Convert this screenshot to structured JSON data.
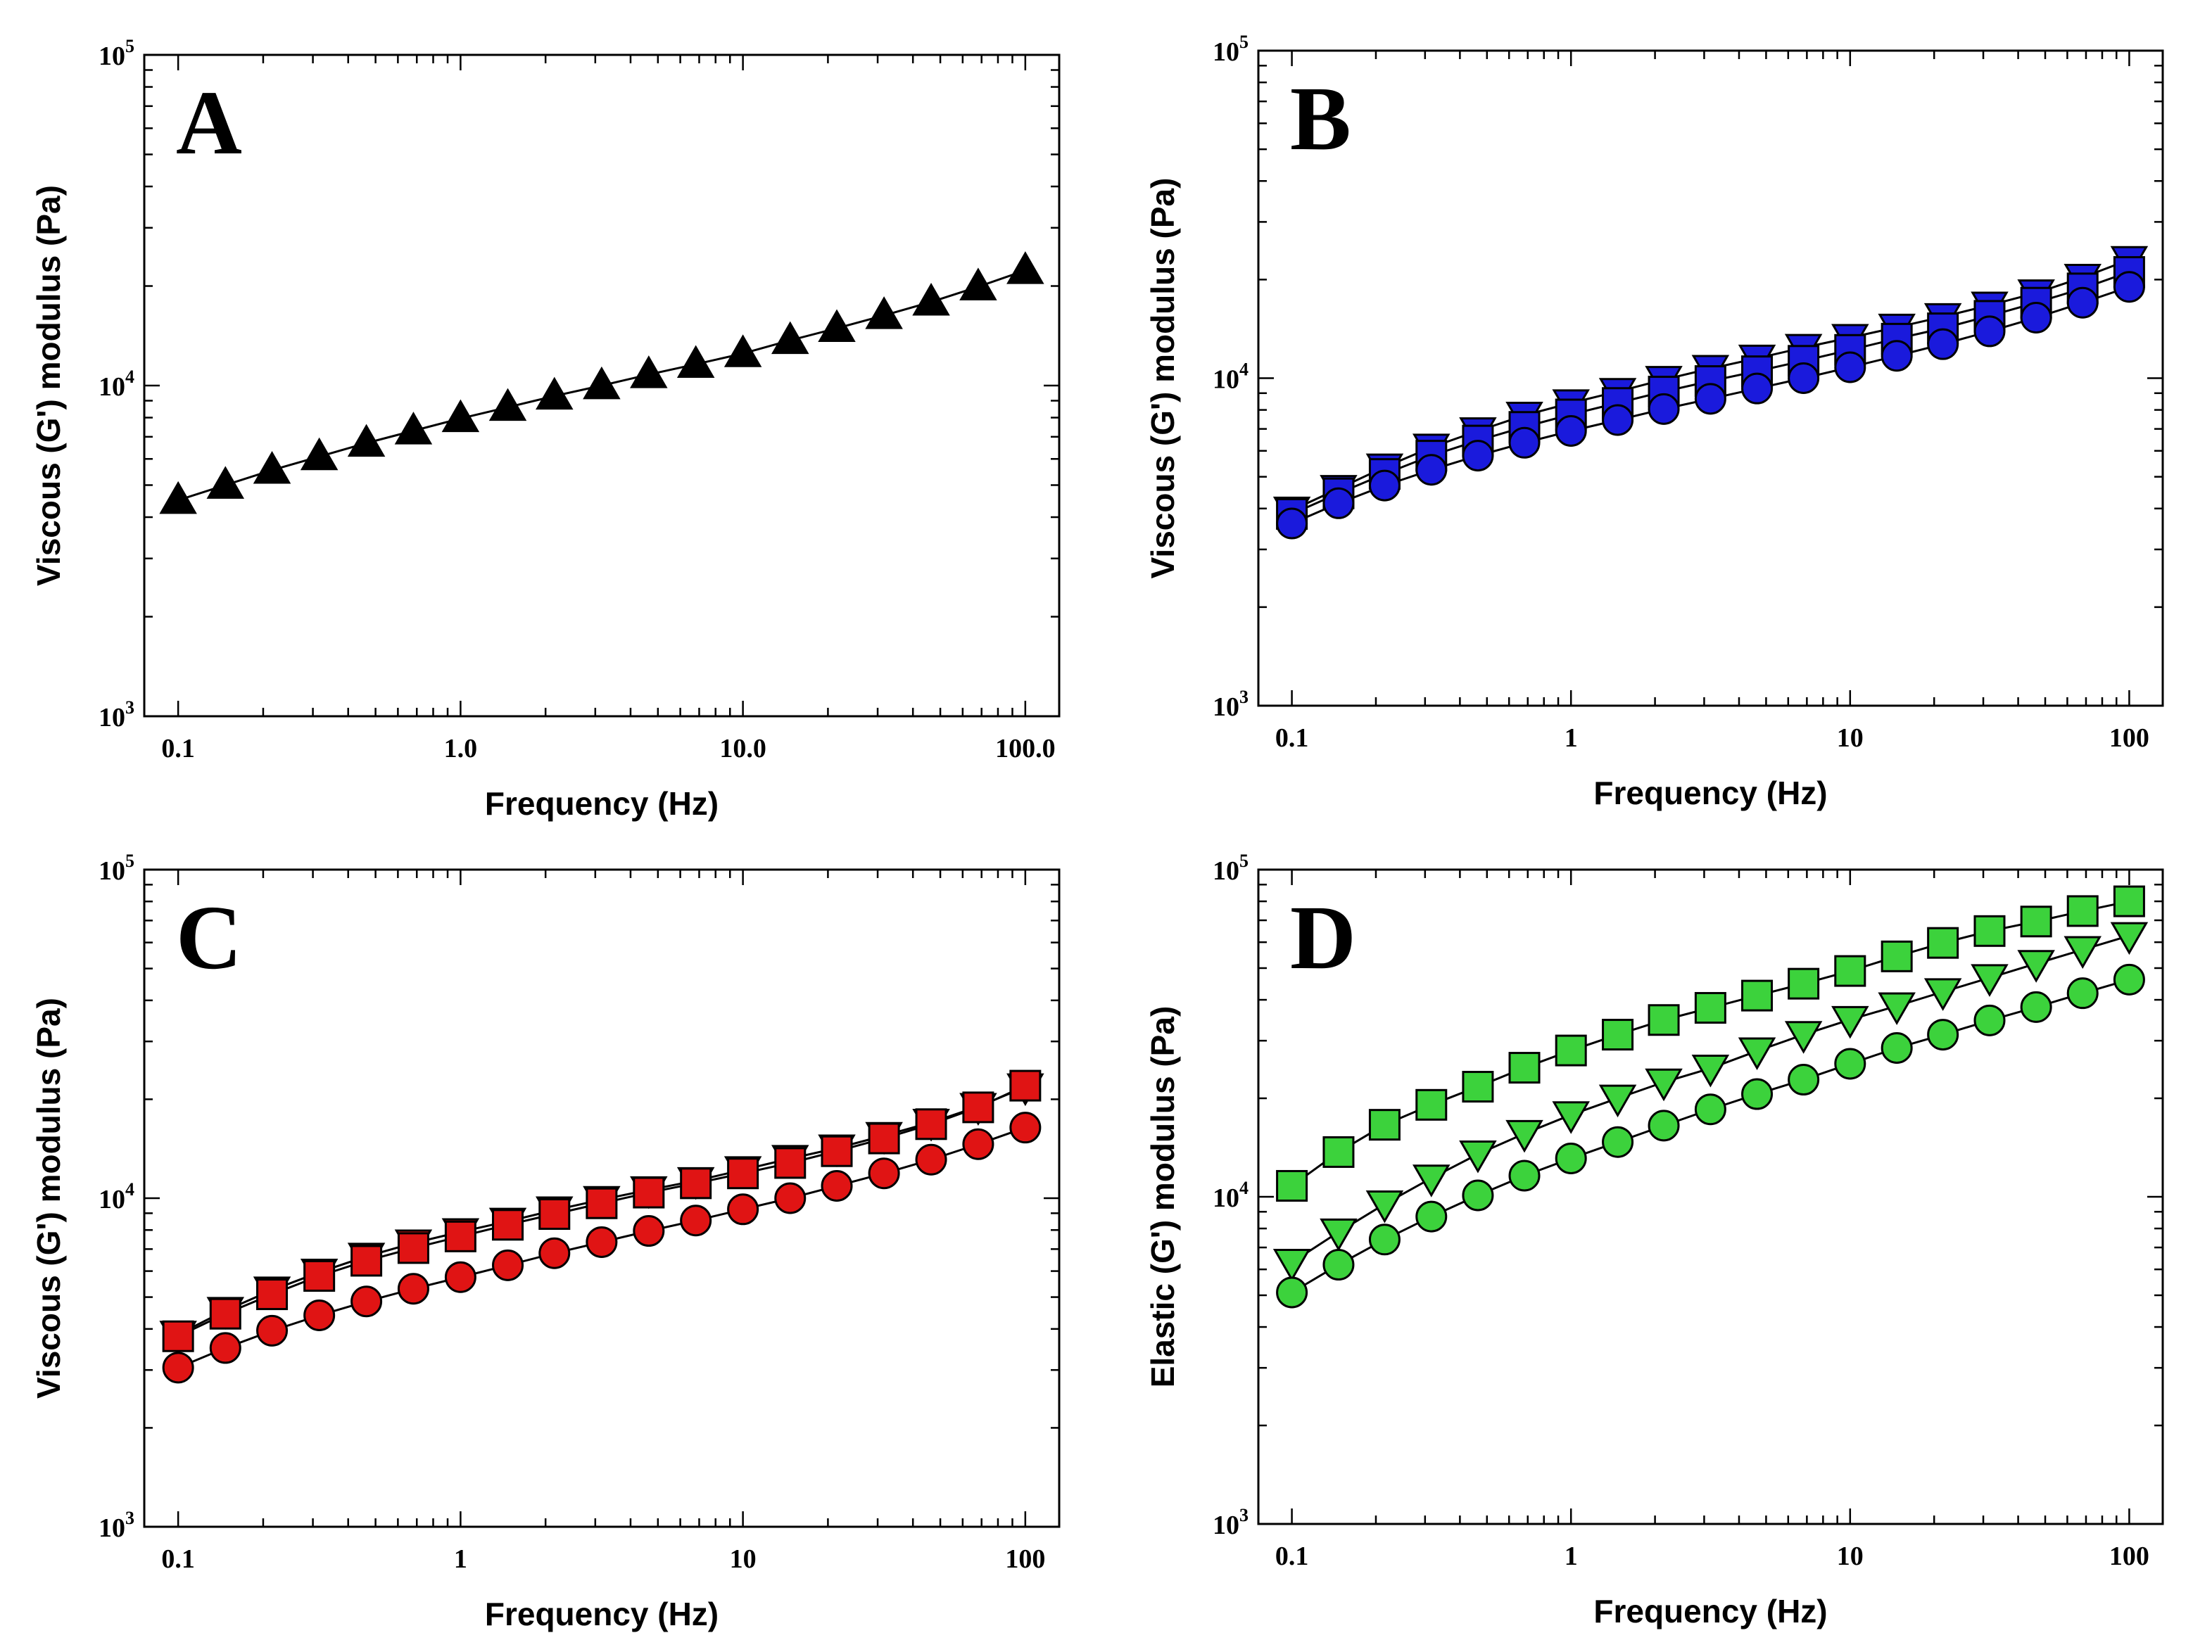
{
  "figure": {
    "background": "#ffffff"
  },
  "chart_data": [
    {
      "panel": "A",
      "type": "line",
      "xscale": "log",
      "yscale": "log",
      "xlim": [
        0.1,
        100
      ],
      "ylim": [
        1000,
        100000
      ],
      "xlabel": "Frequency (Hz)",
      "ylabel": "Viscous (G') modulus (Pa)",
      "xticks": [
        0.1,
        1,
        10,
        100
      ],
      "xtick_labels": [
        "0.1",
        "1.0",
        "10.0",
        "100.0"
      ],
      "yticks": [
        1000,
        10000,
        100000
      ],
      "ytick_labels": [
        {
          "base": "10",
          "exp": "3"
        },
        {
          "base": "10",
          "exp": "4"
        },
        {
          "base": "10",
          "exp": "5"
        }
      ],
      "grid": false,
      "legend": "none",
      "x": [
        0.1,
        0.147,
        0.215,
        0.316,
        0.464,
        0.681,
        1.0,
        1.47,
        2.15,
        3.16,
        4.64,
        6.81,
        10.0,
        14.7,
        21.5,
        31.6,
        46.4,
        68.1,
        100
      ],
      "series": [
        {
          "marker": "triangle-up",
          "color": "#000000",
          "values": [
            4500,
            5000,
            5550,
            6100,
            6700,
            7300,
            7950,
            8600,
            9300,
            10000,
            10800,
            11600,
            12500,
            13700,
            14900,
            16300,
            17900,
            19900,
            22300
          ]
        }
      ]
    },
    {
      "panel": "B",
      "type": "line",
      "xscale": "log",
      "yscale": "log",
      "xlim": [
        0.1,
        100
      ],
      "ylim": [
        1000,
        100000
      ],
      "xlabel": "Frequency (Hz)",
      "ylabel": "Viscous (G') modulus (Pa)",
      "xticks": [
        0.1,
        1,
        10,
        100
      ],
      "xtick_labels": [
        "0.1",
        "1",
        "10",
        "100"
      ],
      "yticks": [
        1000,
        10000,
        100000
      ],
      "ytick_labels": [
        {
          "base": "10",
          "exp": "3"
        },
        {
          "base": "10",
          "exp": "4"
        },
        {
          "base": "10",
          "exp": "5"
        }
      ],
      "grid": false,
      "legend": "none",
      "x": [
        0.1,
        0.147,
        0.215,
        0.316,
        0.464,
        0.681,
        1.0,
        1.47,
        2.15,
        3.16,
        4.64,
        6.81,
        10.0,
        14.7,
        21.5,
        31.6,
        46.4,
        68.1,
        100
      ],
      "series": [
        {
          "marker": "triangle-down",
          "color": "#1a1adc",
          "values": [
            3950,
            4600,
            5350,
            6150,
            6900,
            7700,
            8400,
            9100,
            9900,
            10700,
            11500,
            12400,
            13300,
            14300,
            15400,
            16700,
            18200,
            20300,
            23000
          ]
        },
        {
          "marker": "square",
          "color": "#1a1adc",
          "values": [
            3850,
            4450,
            5100,
            5800,
            6450,
            7100,
            7750,
            8400,
            9100,
            9800,
            10500,
            11300,
            12200,
            13200,
            14200,
            15500,
            17000,
            18800,
            21100
          ]
        },
        {
          "marker": "circle",
          "color": "#1a1adc",
          "values": [
            3600,
            4150,
            4700,
            5250,
            5800,
            6350,
            6900,
            7450,
            8050,
            8650,
            9300,
            10000,
            10800,
            11700,
            12700,
            13900,
            15300,
            17000,
            19000
          ]
        }
      ]
    },
    {
      "panel": "C",
      "type": "line",
      "xscale": "log",
      "yscale": "log",
      "xlim": [
        0.1,
        100
      ],
      "ylim": [
        1000,
        100000
      ],
      "xlabel": "Frequency (Hz)",
      "ylabel": "Viscous (G') modulus (Pa)",
      "xticks": [
        0.1,
        1,
        10,
        100
      ],
      "xtick_labels": [
        "0.1",
        "1",
        "10",
        "100"
      ],
      "yticks": [
        1000,
        10000,
        100000
      ],
      "ytick_labels": [
        {
          "base": "10",
          "exp": "3"
        },
        {
          "base": "10",
          "exp": "4"
        },
        {
          "base": "10",
          "exp": "5"
        }
      ],
      "grid": false,
      "legend": "none",
      "x": [
        0.1,
        0.147,
        0.215,
        0.316,
        0.464,
        0.681,
        1.0,
        1.47,
        2.15,
        3.16,
        4.64,
        6.81,
        10.0,
        14.7,
        21.5,
        31.6,
        46.4,
        68.1,
        100
      ],
      "series": [
        {
          "marker": "triangle-down",
          "color": "#e01414",
          "values": [
            3850,
            4550,
            5250,
            5950,
            6650,
            7300,
            7900,
            8500,
            9200,
            9900,
            10600,
            11300,
            12200,
            13200,
            14200,
            15500,
            17000,
            19000,
            21800
          ]
        },
        {
          "marker": "square",
          "color": "#e01414",
          "values": [
            3800,
            4450,
            5100,
            5800,
            6450,
            7050,
            7650,
            8300,
            8950,
            9650,
            10400,
            11100,
            11900,
            12800,
            13900,
            15200,
            16800,
            18900,
            22000
          ]
        },
        {
          "marker": "circle",
          "color": "#e01414",
          "values": [
            3050,
            3500,
            3950,
            4400,
            4850,
            5300,
            5750,
            6250,
            6800,
            7350,
            7950,
            8550,
            9250,
            10000,
            10900,
            11900,
            13100,
            14600,
            16400
          ]
        }
      ]
    },
    {
      "panel": "D",
      "type": "line",
      "xscale": "log",
      "yscale": "log",
      "xlim": [
        0.1,
        100
      ],
      "ylim": [
        1000,
        100000
      ],
      "xlabel": "Frequency (Hz)",
      "ylabel": "Elastic (G') modulus (Pa)",
      "xticks": [
        0.1,
        1,
        10,
        100
      ],
      "xtick_labels": [
        "0.1",
        "1",
        "10",
        "100"
      ],
      "yticks": [
        1000,
        10000,
        100000
      ],
      "ytick_labels": [
        {
          "base": "10",
          "exp": "3"
        },
        {
          "base": "10",
          "exp": "4"
        },
        {
          "base": "10",
          "exp": "5"
        }
      ],
      "grid": false,
      "legend": "none",
      "x": [
        0.1,
        0.147,
        0.215,
        0.316,
        0.464,
        0.681,
        1.0,
        1.47,
        2.15,
        3.16,
        4.64,
        6.81,
        10.0,
        14.7,
        21.5,
        31.6,
        46.4,
        68.1,
        100
      ],
      "series": [
        {
          "marker": "square",
          "color": "#3cd23c",
          "values": [
            10800,
            13700,
            16600,
            19100,
            21700,
            24800,
            28000,
            31300,
            34700,
            37800,
            41200,
            44800,
            49000,
            54300,
            59700,
            64900,
            69400,
            74700,
            80000
          ]
        },
        {
          "marker": "triangle-down",
          "color": "#3cd23c",
          "values": [
            6300,
            7800,
            9500,
            11400,
            13500,
            15600,
            17800,
            20000,
            22400,
            24700,
            27900,
            31300,
            34800,
            38300,
            42300,
            46700,
            51600,
            56900,
            62800
          ]
        },
        {
          "marker": "circle",
          "color": "#3cd23c",
          "values": [
            5100,
            6200,
            7400,
            8700,
            10100,
            11600,
            13100,
            14700,
            16500,
            18500,
            20600,
            22800,
            25500,
            28500,
            31300,
            34600,
            38000,
            41900,
            46100
          ]
        }
      ]
    }
  ]
}
